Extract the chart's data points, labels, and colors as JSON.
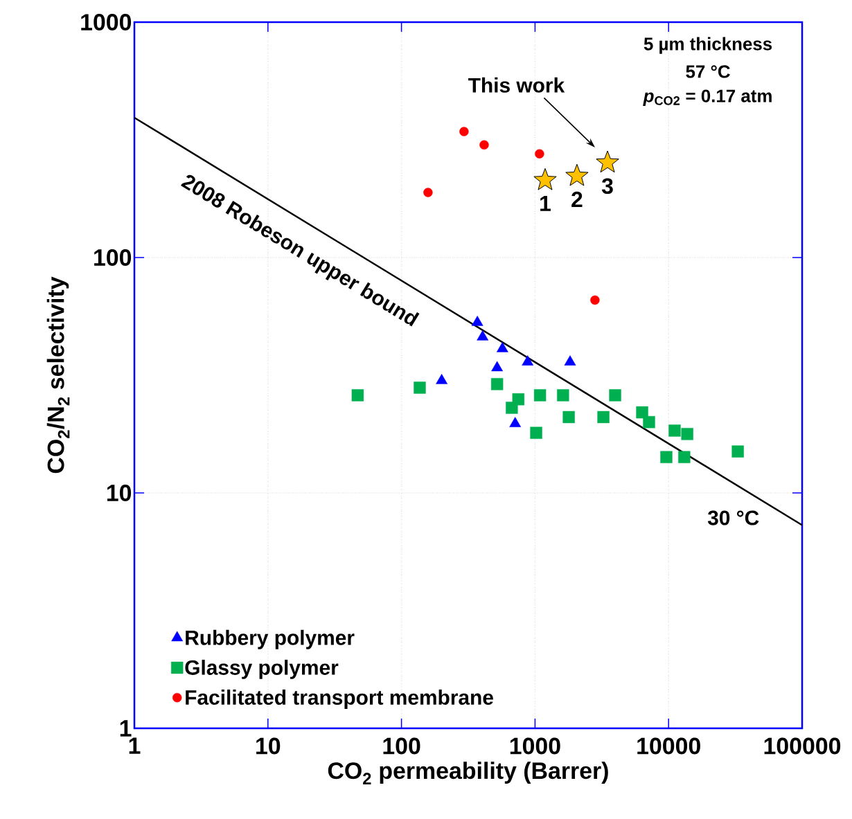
{
  "chart_data": {
    "type": "scatter",
    "xlabel": "CO$_{2}$ permeability (Barrer)",
    "ylabel": "CO$_{2}$/N$_{2}$ selectivity",
    "log": "xy",
    "xlim": [
      1,
      100000
    ],
    "ylim": [
      1,
      1000
    ],
    "xticks": [
      1,
      10,
      100,
      1000,
      10000,
      100000
    ],
    "yticks": [
      1,
      10,
      100,
      1000
    ],
    "grid": true,
    "legend": "bottom left",
    "series": [
      {
        "name": "Rubbery polymer",
        "color": "#0000ff",
        "marker": "triangle",
        "x": [
          200,
          370,
          405,
          570,
          520,
          880,
          1830,
          710
        ],
        "values": [
          30,
          53,
          46,
          41,
          34,
          36,
          36,
          19.7
        ]
      },
      {
        "name": "Glassy polymer",
        "color": "#00b050",
        "marker": "square",
        "x": [
          47,
          137,
          520,
          670,
          750,
          1020,
          1090,
          1620,
          1790,
          3250,
          3980,
          6340,
          7140,
          11100,
          13800,
          9620,
          13100,
          33000
        ],
        "values": [
          26,
          28,
          29,
          23,
          25,
          18,
          26,
          26,
          21,
          21,
          26,
          22,
          20,
          18.4,
          17.8,
          14.2,
          14.2,
          15
        ]
      },
      {
        "name": "Facilitated transport membrane",
        "color": "#ff0000",
        "marker": "circle",
        "x": [
          158,
          294,
          416,
          1080,
          2810
        ],
        "values": [
          189,
          343,
          301,
          276,
          66
        ]
      },
      {
        "color": "#ffc000",
        "marker": "star",
        "x": [
          1190,
          2060,
          3490
        ],
        "values": [
          213,
          222,
          253
        ]
      },
      {
        "type": "line",
        "color": "#000000",
        "marker": "none",
        "x": [
          1,
          100000
        ],
        "values": [
          393,
          7.3
        ]
      }
    ],
    "annotations": [
      "2008 Robeson upper bound",
      "30 °C",
      "This work",
      "5 µm thickness",
      "57 °C",
      "*p*$_{CO2}$ = 0.17 atm",
      {
        "text": "1",
        "x": 1190,
        "y": 213
      },
      {
        "text": "2",
        "x": 2060,
        "y": 222
      },
      {
        "text": "3",
        "x": 3490,
        "y": 253
      }
    ]
  }
}
